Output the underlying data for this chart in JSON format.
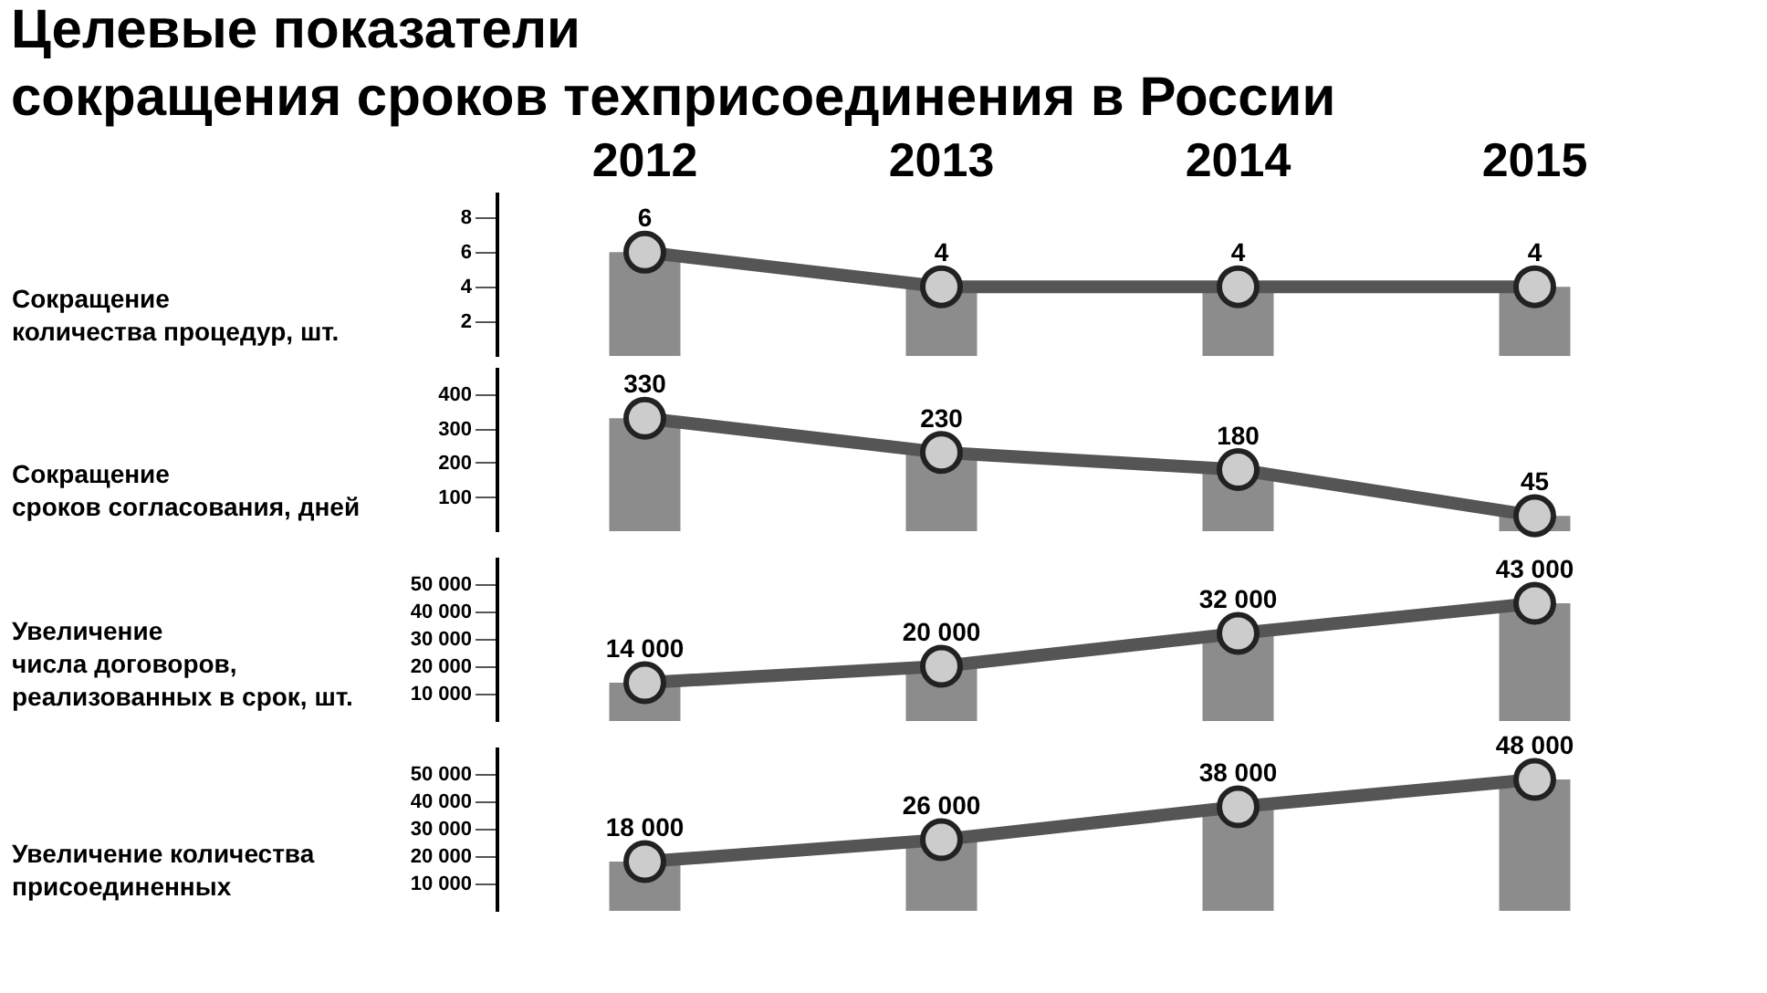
{
  "chart_data": [
    {
      "type": "bar",
      "title": "Целевые показатели\nсокращения сроков техприсоединения в России",
      "categories": [
        "2012",
        "2013",
        "2014",
        "2015"
      ],
      "ylabel": "Сокращение\nколичества процедур, шт.",
      "ylim": [
        0,
        9.5
      ],
      "yticks": [
        2,
        4,
        6,
        8
      ],
      "marker": "circle",
      "series": [
        {
          "type": "bar",
          "color": "#8c8c8c",
          "values": [
            6,
            4,
            4,
            4
          ]
        },
        {
          "type": "line",
          "color": "#555555",
          "values": [
            6,
            4,
            4,
            4
          ],
          "value_labels": [
            "6",
            "4",
            "4",
            "4"
          ]
        }
      ]
    },
    {
      "type": "bar",
      "categories": [
        "2012",
        "2013",
        "2014",
        "2015"
      ],
      "tick_labels": "y",
      "ylabel": "Сокращение\nсроков согласования, дней",
      "ylim": [
        0,
        480
      ],
      "yticks": [
        100,
        200,
        300,
        400
      ],
      "marker": "circle",
      "series": [
        {
          "type": "bar",
          "color": "#8c8c8c",
          "values": [
            330,
            230,
            180,
            45
          ]
        },
        {
          "type": "line",
          "color": "#555555",
          "values": [
            330,
            230,
            180,
            45
          ],
          "value_labels": [
            "330",
            "230",
            "180",
            "45"
          ]
        }
      ]
    },
    {
      "type": "bar",
      "categories": [
        "2012",
        "2013",
        "2014",
        "2015"
      ],
      "tick_labels": "y",
      "ylabel": "Увеличение\nчисла договоров,\nреализованных в срок, шт.",
      "ylim": [
        0,
        60000
      ],
      "yticks": [
        10000,
        20000,
        30000,
        40000,
        50000
      ],
      "marker": "circle",
      "series": [
        {
          "type": "bar",
          "color": "#8c8c8c",
          "values": [
            14000,
            20000,
            32000,
            43000
          ]
        },
        {
          "type": "line",
          "color": "#555555",
          "values": [
            14000,
            20000,
            32000,
            43000
          ],
          "value_labels": [
            "14 000",
            "20 000",
            "32 000",
            "43 000"
          ]
        }
      ]
    },
    {
      "type": "bar",
      "categories": [
        "2012",
        "2013",
        "2014",
        "2015"
      ],
      "tick_labels": "y",
      "ylabel": "Увеличение количества\nприсоединенных",
      "ylim": [
        0,
        60000
      ],
      "yticks": [
        10000,
        20000,
        30000,
        40000,
        50000
      ],
      "marker": "circle",
      "series": [
        {
          "type": "bar",
          "color": "#8c8c8c",
          "values": [
            18000,
            26000,
            38000,
            48000
          ]
        },
        {
          "type": "line",
          "color": "#555555",
          "values": [
            18000,
            26000,
            38000,
            48000
          ],
          "value_labels": [
            "18 000",
            "26 000",
            "38 000",
            "48 000"
          ]
        }
      ]
    }
  ]
}
